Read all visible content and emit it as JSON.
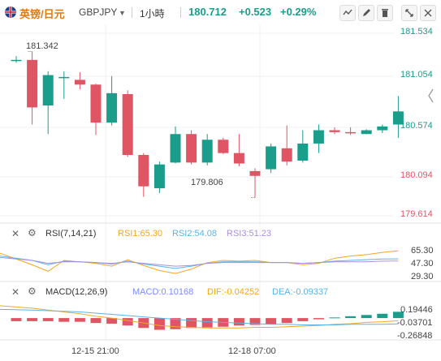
{
  "header": {
    "symbol_name": "英镑/日元",
    "symbol_code": "GBPJPY",
    "interval": "1小時",
    "price": "180.712",
    "change": "+0.523",
    "change_pct": "+0.29%"
  },
  "colors": {
    "up": "#1a9d8a",
    "down": "#e05563",
    "rsi1": "#f5a623",
    "rsi2": "#5ab4e6",
    "rsi3": "#a98fe0",
    "macd": "#7b8cff",
    "dif": "#f5a623",
    "dea": "#5ab4e6"
  },
  "chart_data": [
    {
      "type": "candlestick",
      "price_axis_ticks": [
        "181.534",
        "181.054",
        "180.574",
        "180.094",
        "179.614"
      ],
      "ylim": [
        179.614,
        181.534
      ],
      "x_tick_labels": [
        "12-15 21:00",
        "12-18 07:00"
      ],
      "annotations": {
        "high": "181.342",
        "low": "179.806"
      },
      "candles": [
        {
          "o": 181.254,
          "h": 181.294,
          "l": 181.224,
          "c": 181.254
        },
        {
          "o": 181.254,
          "h": 181.342,
          "l": 180.574,
          "c": 180.754
        },
        {
          "o": 180.774,
          "h": 181.134,
          "l": 180.474,
          "c": 181.094
        },
        {
          "o": 181.074,
          "h": 181.134,
          "l": 180.844,
          "c": 181.074
        },
        {
          "o": 181.044,
          "h": 181.124,
          "l": 180.944,
          "c": 180.994
        },
        {
          "o": 180.994,
          "h": 181.004,
          "l": 180.464,
          "c": 180.594
        },
        {
          "o": 180.594,
          "h": 181.084,
          "l": 180.564,
          "c": 180.904
        },
        {
          "o": 180.894,
          "h": 180.934,
          "l": 180.234,
          "c": 180.254
        },
        {
          "o": 180.254,
          "h": 180.274,
          "l": 179.814,
          "c": 179.924
        },
        {
          "o": 179.904,
          "h": 180.184,
          "l": 179.854,
          "c": 180.154
        },
        {
          "o": 180.174,
          "h": 180.554,
          "l": 180.164,
          "c": 180.474
        },
        {
          "o": 180.474,
          "h": 180.514,
          "l": 180.154,
          "c": 180.174
        },
        {
          "o": 180.174,
          "h": 180.474,
          "l": 180.144,
          "c": 180.414
        },
        {
          "o": 180.414,
          "h": 180.434,
          "l": 180.264,
          "c": 180.274
        },
        {
          "o": 180.274,
          "h": 180.474,
          "l": 180.134,
          "c": 180.164
        },
        {
          "o": 180.084,
          "h": 180.114,
          "l": 179.806,
          "c": 180.034
        },
        {
          "o": 180.104,
          "h": 180.374,
          "l": 180.064,
          "c": 180.344
        },
        {
          "o": 180.324,
          "h": 180.564,
          "l": 180.144,
          "c": 180.184
        },
        {
          "o": 180.194,
          "h": 180.514,
          "l": 180.174,
          "c": 180.374
        },
        {
          "o": 180.374,
          "h": 180.574,
          "l": 180.274,
          "c": 180.514
        },
        {
          "o": 180.514,
          "h": 180.544,
          "l": 180.474,
          "c": 180.494
        },
        {
          "o": 180.494,
          "h": 180.544,
          "l": 180.464,
          "c": 180.484
        },
        {
          "o": 180.474,
          "h": 180.524,
          "l": 180.474,
          "c": 180.514
        },
        {
          "o": 180.514,
          "h": 180.574,
          "l": 180.484,
          "c": 180.554
        },
        {
          "o": 180.574,
          "h": 180.874,
          "l": 180.434,
          "c": 180.712
        }
      ]
    },
    {
      "type": "line",
      "indicator": "RSI(7,14,21)",
      "legend": [
        "RSI1:65.30",
        "RSI2:54.08",
        "RSI3:51.23"
      ],
      "y_tick_labels": [
        "65.30",
        "47.30",
        "29.30"
      ],
      "ylim": [
        24,
        80
      ],
      "series": [
        {
          "name": "RSI1",
          "values": [
            62,
            46,
            37,
            52,
            50,
            48,
            44,
            53,
            45,
            38,
            34,
            40,
            49,
            52,
            51,
            52,
            49,
            49,
            46,
            48,
            55,
            58,
            60,
            63,
            65.3
          ]
        },
        {
          "name": "RSI2",
          "values": [
            58,
            52,
            46,
            51,
            50,
            49,
            47,
            51,
            47,
            44,
            41,
            44,
            48,
            50,
            50,
            50,
            49,
            49,
            48,
            49,
            51,
            52,
            53,
            54,
            54.08
          ]
        },
        {
          "name": "RSI3",
          "values": [
            56,
            52,
            48,
            50,
            50,
            49,
            48,
            50,
            48,
            46,
            44,
            45,
            48,
            49,
            49,
            49,
            49,
            49,
            48,
            49,
            50,
            50,
            50,
            51,
            51.23
          ]
        }
      ]
    },
    {
      "type": "bar",
      "indicator": "MACD(12,26,9)",
      "legend": [
        "MACD:0.10168",
        "DIF:-0.04252",
        "DEA:-0.09337"
      ],
      "y_tick_labels": [
        "0.19446",
        "-0.03701",
        "-0.26848"
      ],
      "ylim": [
        -0.34,
        0.29
      ],
      "histogram": [
        -0.05,
        -0.05,
        -0.05,
        -0.06,
        -0.06,
        -0.08,
        -0.09,
        -0.12,
        -0.16,
        -0.19,
        -0.18,
        -0.16,
        -0.15,
        -0.14,
        -0.12,
        -0.11,
        -0.1,
        -0.08,
        -0.05,
        -0.02,
        0.01,
        0.03,
        0.05,
        0.07,
        0.10168
      ],
      "series": [
        {
          "name": "DIF",
          "values": [
            0.2,
            0.16,
            0.13,
            0.1,
            0.07,
            0.03,
            0,
            -0.04,
            -0.08,
            -0.12,
            -0.14,
            -0.15,
            -0.16,
            -0.16,
            -0.16,
            -0.15,
            -0.15,
            -0.14,
            -0.13,
            -0.12,
            -0.1,
            -0.09,
            -0.07,
            -0.06,
            -0.04252
          ]
        },
        {
          "name": "DEA",
          "values": [
            0.14,
            0.13,
            0.12,
            0.11,
            0.1,
            0.08,
            0.06,
            0.04,
            0.02,
            0,
            -0.02,
            -0.04,
            -0.06,
            -0.07,
            -0.08,
            -0.09,
            -0.1,
            -0.1,
            -0.11,
            -0.11,
            -0.11,
            -0.1,
            -0.1,
            -0.1,
            -0.09337
          ]
        }
      ]
    }
  ]
}
